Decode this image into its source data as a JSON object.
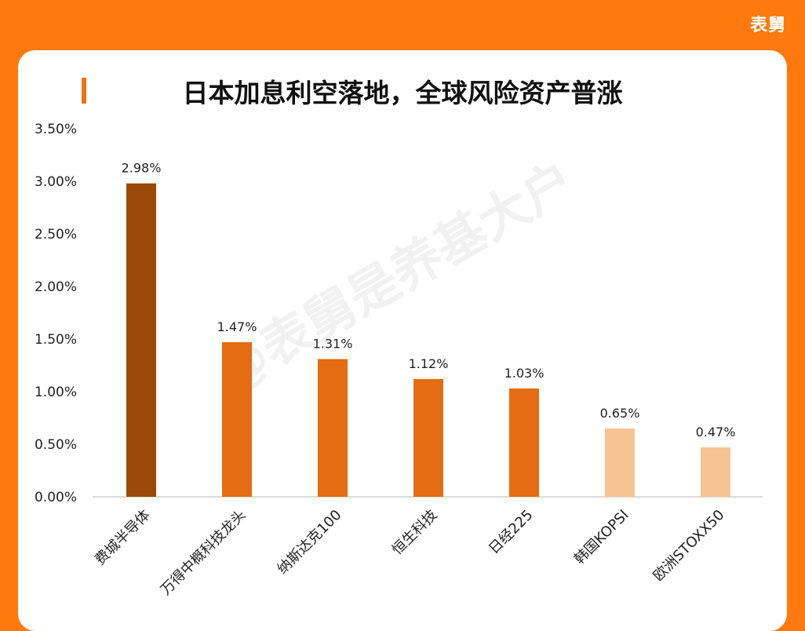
{
  "brand": "表舅",
  "watermark": "@表舅是养基大户",
  "chart_data": {
    "type": "bar",
    "title": "日本加息利空落地，全球风险资产普涨",
    "categories": [
      "费城半导体",
      "万得中概科技龙头",
      "纳斯达克100",
      "恒生科技",
      "日经225",
      "韩国KOPSI",
      "欧洲STOXX50"
    ],
    "values": [
      2.98,
      1.47,
      1.31,
      1.12,
      1.03,
      0.65,
      0.47
    ],
    "data_labels": [
      "2.98%",
      "1.47%",
      "1.31%",
      "1.12%",
      "1.03%",
      "0.65%",
      "0.47%"
    ],
    "bar_colors": [
      "#9A4A08",
      "#E46C12",
      "#E46C12",
      "#E46C12",
      "#E46C12",
      "#F8C393",
      "#F8C393"
    ],
    "ylim": [
      0,
      3.5
    ],
    "yticks": [
      0,
      0.5,
      1.0,
      1.5,
      2.0,
      2.5,
      3.0,
      3.5
    ],
    "ytick_labels": [
      "0.00%",
      "0.50%",
      "1.00%",
      "1.50%",
      "2.00%",
      "2.50%",
      "3.00%",
      "3.50%"
    ],
    "xlabel": "",
    "ylabel": "",
    "grid": false,
    "legend": "none"
  }
}
